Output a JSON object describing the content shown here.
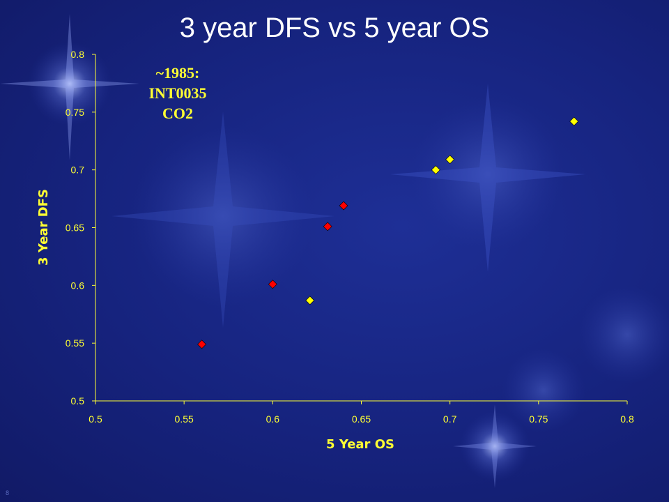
{
  "slide": {
    "title": "3 year DFS vs 5 year OS",
    "page_number": "8",
    "annotation": [
      "~1985:",
      "INT0035",
      "CO2"
    ]
  },
  "colors": {
    "background": "#16237e",
    "text": "#ffff33",
    "axis": "#ffff33",
    "series_yellow": "#ffff00",
    "series_red": "#ff0000"
  },
  "chart_data": {
    "type": "scatter",
    "title": "3 year DFS vs 5 year OS",
    "xlabel": "5 Year OS",
    "ylabel": "3 Year DFS",
    "xlim": [
      0.5,
      0.8
    ],
    "ylim": [
      0.5,
      0.8
    ],
    "xticks": [
      "0.5",
      "0.55",
      "0.6",
      "0.65",
      "0.7",
      "0.75",
      "0.8"
    ],
    "yticks": [
      "0.5",
      "0.55",
      "0.6",
      "0.65",
      "0.7",
      "0.75",
      "0.8"
    ],
    "grid": false,
    "marker": "diamond",
    "series": [
      {
        "color": "#ff0000",
        "x": [
          0.56,
          0.6,
          0.631,
          0.64
        ],
        "y": [
          0.549,
          0.601,
          0.651,
          0.669
        ]
      },
      {
        "color": "#ffff00",
        "x": [
          0.621,
          0.692,
          0.7,
          0.77
        ],
        "y": [
          0.587,
          0.7,
          0.709,
          0.742
        ]
      }
    ]
  }
}
